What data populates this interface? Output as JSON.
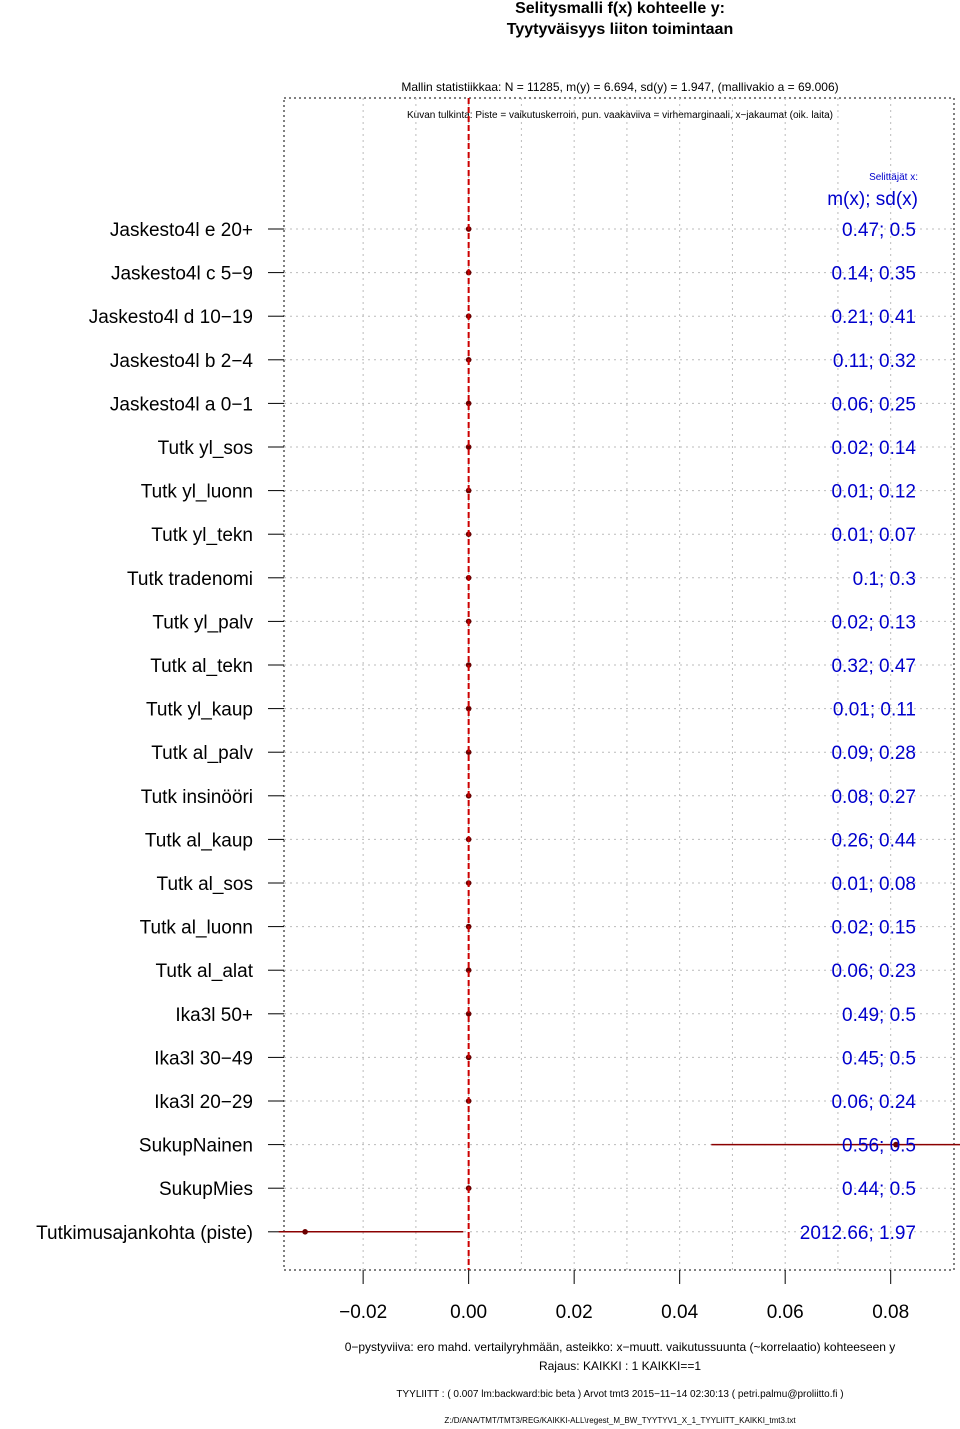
{
  "title_line1": "Selitysmalli f(x) kohteelle y:",
  "title_line2": "Tyytyväisyys liiton toimintaan",
  "stats_line": "Mallin statistiikkaa: N = 11285, m(y) = 6.694, sd(y) = 1.947, (mallivakio a = 69.006)",
  "legend_line": "Kuvan tulkinta: Piste = vaikutuskerroin, pun. vaakaviiva = virhemarginaali, x−jakaumat (oik. laita)",
  "side_header_small": "Selittäjät x:",
  "side_header_big": "m(x); sd(x)",
  "footer_line1": "0−pystyviiva: ero mahd. vertailyryhmään, asteikko: x−muutt. vaikutussuunta (~korrelaatio) kohteeseen y",
  "footer_line2": "Rajaus: KAIKKI : 1  KAIKKI==1",
  "footer_line3": "TYYLIITT : ( 0.007 lm:backward:bic beta )   Arvot tmt3 2015−11−14 02:30:13 ( petri.palmu@proliitto.fi )",
  "footer_line4": "Z:/D/ANA/TMT/TMT3/REG/KAIKKI-ALL\\regest_M_BW_TYYTYV1_X_1_TYYLIITT_KAIKKI_tmt3.txt",
  "colors": {
    "zero_line": "#cc0000",
    "point": "#6b0000",
    "error_bar": "#8b0000",
    "side_text": "#0000cc",
    "grid": "#bbbbbb"
  },
  "chart_data": {
    "type": "dot-errorbar",
    "xlim": [
      -0.035,
      0.092
    ],
    "xticks": [
      -0.02,
      0.0,
      0.02,
      0.04,
      0.06,
      0.08
    ],
    "xtick_labels": [
      "−0.02",
      "0.00",
      "0.02",
      "0.04",
      "0.06",
      "0.08"
    ],
    "grid": true,
    "rows": [
      {
        "label": "Jaskesto4l e 20+",
        "estimate": 0.0,
        "ci": null,
        "mx_sd": "0.47; 0.5"
      },
      {
        "label": "Jaskesto4l c 5−9",
        "estimate": 0.0,
        "ci": null,
        "mx_sd": "0.14; 0.35"
      },
      {
        "label": "Jaskesto4l d 10−19",
        "estimate": 0.0,
        "ci": null,
        "mx_sd": "0.21; 0.41"
      },
      {
        "label": "Jaskesto4l b 2−4",
        "estimate": 0.0,
        "ci": null,
        "mx_sd": "0.11; 0.32"
      },
      {
        "label": "Jaskesto4l a 0−1",
        "estimate": 0.0,
        "ci": null,
        "mx_sd": "0.06; 0.25"
      },
      {
        "label": "Tutk yl_sos",
        "estimate": 0.0,
        "ci": null,
        "mx_sd": "0.02; 0.14"
      },
      {
        "label": "Tutk yl_luonn",
        "estimate": 0.0,
        "ci": null,
        "mx_sd": "0.01; 0.12"
      },
      {
        "label": "Tutk yl_tekn",
        "estimate": 0.0,
        "ci": null,
        "mx_sd": "0.01; 0.07"
      },
      {
        "label": "Tutk tradenomi",
        "estimate": 0.0,
        "ci": null,
        "mx_sd": "0.1; 0.3"
      },
      {
        "label": "Tutk yl_palv",
        "estimate": 0.0,
        "ci": null,
        "mx_sd": "0.02; 0.13"
      },
      {
        "label": "Tutk al_tekn",
        "estimate": 0.0,
        "ci": null,
        "mx_sd": "0.32; 0.47"
      },
      {
        "label": "Tutk yl_kaup",
        "estimate": 0.0,
        "ci": null,
        "mx_sd": "0.01; 0.11"
      },
      {
        "label": "Tutk al_palv",
        "estimate": 0.0,
        "ci": null,
        "mx_sd": "0.09; 0.28"
      },
      {
        "label": "Tutk insinööri",
        "estimate": 0.0,
        "ci": null,
        "mx_sd": "0.08; 0.27"
      },
      {
        "label": "Tutk al_kaup",
        "estimate": 0.0,
        "ci": null,
        "mx_sd": "0.26; 0.44"
      },
      {
        "label": "Tutk al_sos",
        "estimate": 0.0,
        "ci": null,
        "mx_sd": "0.01; 0.08"
      },
      {
        "label": "Tutk al_luonn",
        "estimate": 0.0,
        "ci": null,
        "mx_sd": "0.02; 0.15"
      },
      {
        "label": "Tutk al_alat",
        "estimate": 0.0,
        "ci": null,
        "mx_sd": "0.06; 0.23"
      },
      {
        "label": "Ika3l 50+",
        "estimate": 0.0,
        "ci": null,
        "mx_sd": "0.49; 0.5"
      },
      {
        "label": "Ika3l 30−49",
        "estimate": 0.0,
        "ci": null,
        "mx_sd": "0.45; 0.5"
      },
      {
        "label": "Ika3l 20−29",
        "estimate": 0.0,
        "ci": null,
        "mx_sd": "0.06; 0.24"
      },
      {
        "label": "SukupNainen",
        "estimate": 0.081,
        "ci": [
          0.046,
          0.095
        ],
        "mx_sd": "0.56; 0.5"
      },
      {
        "label": "SukupMies",
        "estimate": 0.0,
        "ci": null,
        "mx_sd": "0.44; 0.5"
      },
      {
        "label": "Tutkimusajankohta (piste)",
        "estimate": -0.031,
        "ci": [
          -0.036,
          -0.001
        ],
        "mx_sd": "2012.66; 1.97"
      }
    ]
  }
}
